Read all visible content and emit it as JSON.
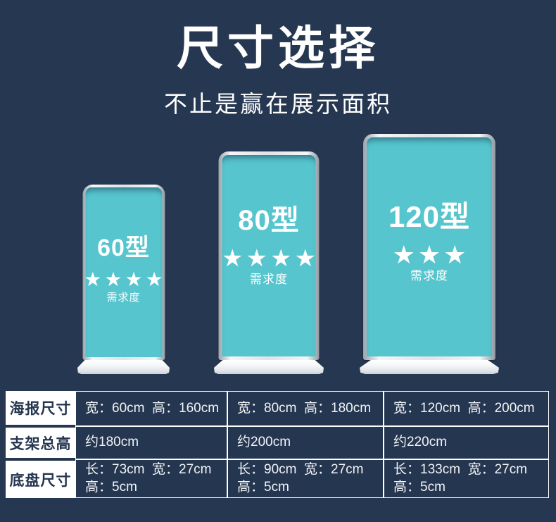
{
  "colors": {
    "background": "#263751",
    "poster_teal": "#56C5CE",
    "frame_silver": "#DFE4E8",
    "base_white": "#F2F4F6",
    "table_grid": "#FFFFFF",
    "header_cell_bg": "#FFFFFF",
    "header_cell_text": "#24364F",
    "text_white": "#FFFFFF"
  },
  "header": {
    "title": "尺寸选择",
    "subtitle": "不止是赢在展示面积"
  },
  "stands": [
    {
      "model": "60型",
      "stars": "★★★★",
      "star_count": 4,
      "demand_label": "需求度"
    },
    {
      "model": "80型",
      "stars": "★★★★",
      "star_count": 4,
      "demand_label": "需求度"
    },
    {
      "model": "120型",
      "stars": "★★★",
      "star_count": 3,
      "demand_label": "需求度"
    }
  ],
  "spec_table": {
    "rows": [
      {
        "header": "海报尺寸",
        "cells": [
          "宽：60cm  高：160cm",
          "宽：80cm  高：180cm",
          "宽：120cm  高：200cm"
        ]
      },
      {
        "header": "支架总高",
        "cells": [
          "约180cm",
          "约200cm",
          "约220cm"
        ]
      },
      {
        "header": "底盘尺寸",
        "cells": [
          "长：73cm  宽：27cm\n高：5cm",
          "长：90cm  宽：27cm\n高：5cm",
          "长：133cm  宽：27cm\n高：5cm"
        ]
      }
    ]
  }
}
